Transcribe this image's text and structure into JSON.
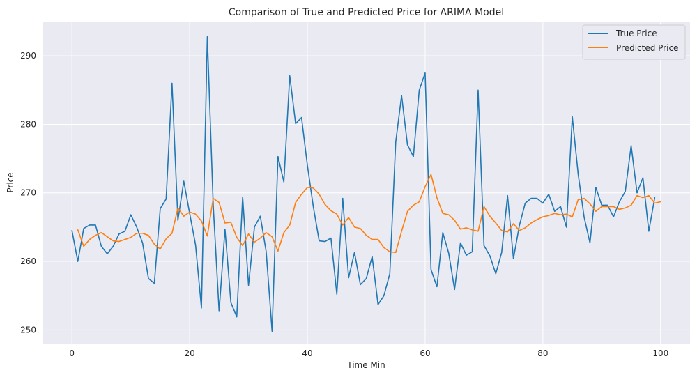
{
  "chart_data": {
    "type": "line",
    "title": "Comparison of True and Predicted Price for ARIMA Model",
    "xlabel": "Time Min",
    "ylabel": "Price",
    "xlim": [
      -5,
      105
    ],
    "ylim": [
      248,
      295
    ],
    "x_ticks": [
      0,
      20,
      40,
      60,
      80,
      100
    ],
    "y_ticks": [
      250,
      260,
      270,
      280,
      290
    ],
    "grid": true,
    "legend_position": "top-right",
    "series": [
      {
        "name": "True Price",
        "color": "#1f77b4",
        "x_start": 0,
        "values": [
          264.5,
          260.0,
          264.8,
          265.3,
          265.3,
          262.2,
          261.1,
          262.2,
          264.0,
          264.4,
          266.8,
          265.0,
          262.7,
          257.5,
          256.8,
          267.7,
          269.1,
          286.0,
          266.0,
          271.7,
          267.0,
          262.4,
          253.2,
          292.8,
          268.2,
          252.7,
          264.7,
          254.0,
          251.9,
          269.4,
          256.5,
          265.0,
          266.6,
          261.4,
          249.8,
          275.3,
          271.6,
          287.1,
          280.1,
          281.0,
          274.0,
          268.0,
          263.0,
          262.9,
          263.4,
          255.2,
          269.2,
          257.6,
          261.3,
          256.6,
          257.5,
          260.7,
          253.7,
          255.0,
          258.2,
          277.4,
          284.2,
          277.0,
          275.3,
          285.0,
          287.5,
          258.8,
          256.3,
          264.2,
          261.2,
          255.9,
          262.7,
          260.9,
          261.4,
          285.0,
          262.3,
          260.8,
          258.2,
          261.3,
          269.6,
          260.4,
          265.2,
          268.5,
          269.2,
          269.2,
          268.5,
          269.8,
          267.3,
          268.0,
          265.0,
          281.1,
          272.7,
          266.5,
          262.7,
          270.8,
          268.2,
          268.2,
          266.5,
          268.7,
          270.2,
          276.9,
          270.0,
          272.2,
          264.4,
          269.3
        ]
      },
      {
        "name": "Predicted Price",
        "color": "#ff7f0e",
        "x_start": 1,
        "values": [
          264.6,
          262.2,
          263.2,
          263.8,
          264.2,
          263.6,
          263.0,
          262.9,
          263.2,
          263.5,
          264.1,
          264.1,
          263.8,
          262.5,
          261.8,
          263.3,
          264.1,
          267.8,
          266.6,
          267.2,
          266.9,
          265.9,
          263.7,
          269.2,
          268.6,
          265.6,
          265.7,
          263.5,
          262.3,
          264.0,
          262.8,
          263.4,
          264.2,
          263.6,
          261.5,
          264.2,
          265.3,
          268.6,
          269.8,
          270.8,
          270.7,
          269.8,
          268.3,
          267.4,
          266.9,
          265.3,
          266.4,
          265.0,
          264.8,
          263.8,
          263.2,
          263.2,
          262.0,
          261.4,
          261.3,
          264.4,
          267.3,
          268.2,
          268.7,
          270.9,
          272.7,
          269.3,
          267.0,
          266.8,
          266.0,
          264.7,
          264.9,
          264.6,
          264.4,
          268.0,
          266.6,
          265.6,
          264.5,
          264.3,
          265.5,
          264.5,
          264.9,
          265.6,
          266.1,
          266.5,
          266.7,
          267.0,
          266.8,
          266.9,
          266.5,
          269.0,
          269.2,
          268.4,
          267.3,
          268.0,
          268.0,
          268.0,
          267.6,
          267.8,
          268.2,
          269.6,
          269.3,
          269.6,
          268.5,
          268.7
        ]
      }
    ]
  }
}
